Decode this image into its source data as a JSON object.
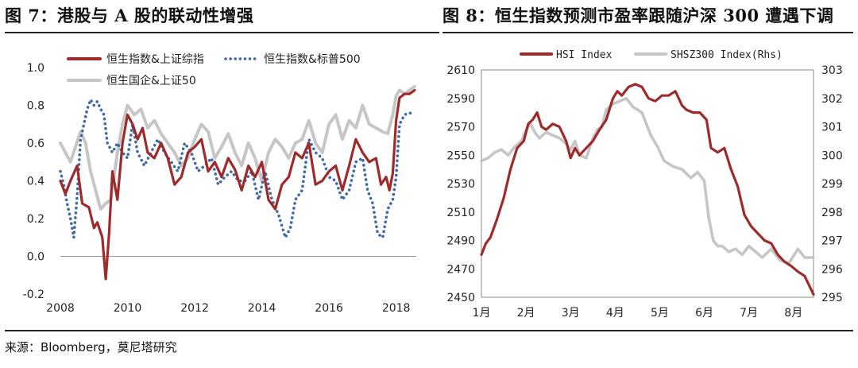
{
  "figures": {
    "left_title": "图 7：港股与 A 股的联动性增强",
    "right_title": "图 8：恒生指数预测市盈率跟随沪深 300 遭遇下调"
  },
  "source": "来源：Bloomberg，莫尼塔研究",
  "colors": {
    "red": "#9e2a2b",
    "blue": "#3e6aa8",
    "gray": "#c6c6c6"
  },
  "chart_data": [
    {
      "type": "line",
      "ylim": [
        -0.2,
        1.0
      ],
      "yticks": [
        "1.0",
        "0.8",
        "0.6",
        "0.4",
        "0.2",
        "0.0",
        "-0.2"
      ],
      "xlim": [
        2008,
        2018.6
      ],
      "xticks": [
        "2008",
        "2010",
        "2012",
        "2014",
        "2016",
        "2018"
      ],
      "legend": "top-left",
      "series": [
        {
          "name": "恒生指数&上证综指",
          "style": "solid",
          "color": "#9e2a2b",
          "x": [
            2008.0,
            2008.15,
            2008.3,
            2008.5,
            2008.65,
            2008.85,
            2009.0,
            2009.1,
            2009.25,
            2009.35,
            2009.45,
            2009.55,
            2009.7,
            2009.85,
            2010.0,
            2010.15,
            2010.3,
            2010.45,
            2010.6,
            2010.8,
            2011.0,
            2011.2,
            2011.4,
            2011.6,
            2011.8,
            2012.0,
            2012.2,
            2012.4,
            2012.6,
            2012.8,
            2013.0,
            2013.2,
            2013.4,
            2013.6,
            2013.8,
            2014.0,
            2014.2,
            2014.4,
            2014.6,
            2014.8,
            2015.0,
            2015.2,
            2015.4,
            2015.6,
            2015.8,
            2016.0,
            2016.2,
            2016.4,
            2016.6,
            2016.8,
            2017.0,
            2017.2,
            2017.4,
            2017.55,
            2017.7,
            2017.8,
            2017.9,
            2018.0,
            2018.1,
            2018.25,
            2018.4,
            2018.55
          ],
          "y": [
            0.4,
            0.33,
            0.4,
            0.48,
            0.28,
            0.26,
            0.15,
            0.18,
            0.1,
            -0.12,
            0.12,
            0.45,
            0.3,
            0.6,
            0.75,
            0.7,
            0.62,
            0.68,
            0.55,
            0.52,
            0.6,
            0.52,
            0.38,
            0.42,
            0.55,
            0.58,
            0.62,
            0.45,
            0.5,
            0.42,
            0.52,
            0.46,
            0.35,
            0.48,
            0.42,
            0.5,
            0.3,
            0.25,
            0.38,
            0.42,
            0.55,
            0.52,
            0.6,
            0.38,
            0.4,
            0.45,
            0.48,
            0.35,
            0.48,
            0.62,
            0.55,
            0.5,
            0.52,
            0.38,
            0.42,
            0.35,
            0.44,
            0.72,
            0.84,
            0.86,
            0.86,
            0.88
          ]
        },
        {
          "name": "恒生指数&标普500",
          "style": "dotted",
          "color": "#3e6aa8",
          "x": [
            2008.0,
            2008.1,
            2008.2,
            2008.3,
            2008.4,
            2008.5,
            2008.6,
            2008.7,
            2008.8,
            2008.9,
            2009.0,
            2009.1,
            2009.2,
            2009.3,
            2009.4,
            2009.55,
            2009.7,
            2009.85,
            2010.0,
            2010.15,
            2010.3,
            2010.5,
            2010.7,
            2010.9,
            2011.1,
            2011.3,
            2011.5,
            2011.7,
            2011.9,
            2012.1,
            2012.3,
            2012.5,
            2012.7,
            2012.9,
            2013.1,
            2013.3,
            2013.5,
            2013.7,
            2013.9,
            2014.1,
            2014.3,
            2014.5,
            2014.7,
            2014.85,
            2015.0,
            2015.2,
            2015.4,
            2015.6,
            2015.8,
            2016.0,
            2016.2,
            2016.4,
            2016.6,
            2016.8,
            2017.0,
            2017.15,
            2017.3,
            2017.45,
            2017.6,
            2017.75,
            2017.9,
            2018.0,
            2018.1,
            2018.25,
            2018.4,
            2018.55
          ],
          "y": [
            0.45,
            0.38,
            0.28,
            0.2,
            0.1,
            0.32,
            0.62,
            0.7,
            0.78,
            0.83,
            0.8,
            0.82,
            0.78,
            0.75,
            0.6,
            0.55,
            0.6,
            0.55,
            0.52,
            0.7,
            0.55,
            0.48,
            0.55,
            0.62,
            0.55,
            0.5,
            0.45,
            0.6,
            0.55,
            0.45,
            0.48,
            0.52,
            0.38,
            0.42,
            0.45,
            0.4,
            0.4,
            0.45,
            0.3,
            0.45,
            0.3,
            0.22,
            0.1,
            0.15,
            0.3,
            0.35,
            0.62,
            0.55,
            0.52,
            0.42,
            0.4,
            0.3,
            0.35,
            0.5,
            0.52,
            0.35,
            0.28,
            0.12,
            0.1,
            0.25,
            0.3,
            0.42,
            0.7,
            0.75,
            0.76,
            0.75
          ]
        },
        {
          "name": "恒生国企&上证50",
          "style": "solid",
          "color": "#c6c6c6",
          "x": [
            2008.0,
            2008.15,
            2008.3,
            2008.45,
            2008.6,
            2008.75,
            2008.9,
            2009.05,
            2009.2,
            2009.35,
            2009.5,
            2009.7,
            2009.85,
            2010.0,
            2010.2,
            2010.4,
            2010.6,
            2010.8,
            2011.0,
            2011.2,
            2011.4,
            2011.6,
            2011.8,
            2012.0,
            2012.2,
            2012.4,
            2012.6,
            2012.8,
            2013.0,
            2013.2,
            2013.4,
            2013.6,
            2013.8,
            2014.0,
            2014.2,
            2014.4,
            2014.6,
            2014.8,
            2015.0,
            2015.2,
            2015.4,
            2015.6,
            2015.8,
            2016.0,
            2016.2,
            2016.4,
            2016.6,
            2016.8,
            2017.0,
            2017.2,
            2017.4,
            2017.6,
            2017.75,
            2017.9,
            2018.0,
            2018.1,
            2018.25,
            2018.4,
            2018.55
          ],
          "y": [
            0.6,
            0.55,
            0.5,
            0.58,
            0.66,
            0.6,
            0.45,
            0.35,
            0.25,
            0.28,
            0.3,
            0.55,
            0.7,
            0.8,
            0.75,
            0.78,
            0.68,
            0.72,
            0.65,
            0.6,
            0.55,
            0.48,
            0.52,
            0.62,
            0.7,
            0.66,
            0.52,
            0.58,
            0.65,
            0.55,
            0.48,
            0.6,
            0.52,
            0.4,
            0.55,
            0.62,
            0.58,
            0.52,
            0.6,
            0.62,
            0.72,
            0.6,
            0.55,
            0.7,
            0.75,
            0.62,
            0.72,
            0.68,
            0.8,
            0.7,
            0.68,
            0.66,
            0.65,
            0.75,
            0.85,
            0.88,
            0.86,
            0.88,
            0.9
          ]
        }
      ]
    },
    {
      "type": "line",
      "ylim": [
        2450,
        2610
      ],
      "yticks": [
        "2610",
        "2590",
        "2570",
        "2550",
        "2530",
        "2510",
        "2490",
        "2470",
        "2450"
      ],
      "y2lim": [
        295,
        303
      ],
      "y2ticks": [
        "303",
        "302",
        "301",
        "300",
        "299",
        "298",
        "297",
        "296",
        "295"
      ],
      "xticks": [
        "1月",
        "2月",
        "3月",
        "4月",
        "5月",
        "6月",
        "7月",
        "8月"
      ],
      "xlim": [
        1,
        8.45
      ],
      "legend": "top-center",
      "series": [
        {
          "name": "HSI Index",
          "axis": "left",
          "color": "#9e2a2b",
          "x": [
            1.0,
            1.1,
            1.2,
            1.35,
            1.5,
            1.65,
            1.8,
            1.95,
            2.05,
            2.15,
            2.25,
            2.35,
            2.45,
            2.6,
            2.75,
            2.9,
            3.0,
            3.1,
            3.2,
            3.35,
            3.5,
            3.65,
            3.8,
            3.95,
            4.05,
            4.15,
            4.3,
            4.45,
            4.6,
            4.75,
            4.9,
            5.05,
            5.2,
            5.35,
            5.5,
            5.6,
            5.75,
            5.9,
            6.05,
            6.15,
            6.3,
            6.45,
            6.6,
            6.75,
            6.9,
            7.05,
            7.2,
            7.35,
            7.5,
            7.65,
            7.8,
            7.95,
            8.1,
            8.25,
            8.45
          ],
          "y": [
            2480,
            2488,
            2492,
            2505,
            2520,
            2540,
            2555,
            2560,
            2572,
            2575,
            2580,
            2570,
            2568,
            2572,
            2570,
            2560,
            2548,
            2555,
            2550,
            2555,
            2560,
            2568,
            2575,
            2590,
            2595,
            2592,
            2598,
            2600,
            2598,
            2590,
            2588,
            2592,
            2592,
            2595,
            2585,
            2582,
            2580,
            2580,
            2575,
            2555,
            2552,
            2555,
            2540,
            2528,
            2508,
            2500,
            2495,
            2490,
            2488,
            2480,
            2475,
            2472,
            2468,
            2465,
            2452
          ]
        },
        {
          "name": "SHSZ300 Index(Rhs)",
          "axis": "right",
          "color": "#c6c6c6",
          "x": [
            1.0,
            1.15,
            1.3,
            1.45,
            1.6,
            1.75,
            1.9,
            2.0,
            2.1,
            2.2,
            2.3,
            2.45,
            2.6,
            2.75,
            2.9,
            3.0,
            3.1,
            3.2,
            3.35,
            3.5,
            3.6,
            3.7,
            3.8,
            3.95,
            4.1,
            4.25,
            4.4,
            4.6,
            4.8,
            4.95,
            5.1,
            5.3,
            5.5,
            5.7,
            5.85,
            6.0,
            6.1,
            6.2,
            6.3,
            6.4,
            6.55,
            6.7,
            6.85,
            7.0,
            7.15,
            7.3,
            7.5,
            7.7,
            7.9,
            8.1,
            8.25,
            8.45
          ],
          "y": [
            299.8,
            299.9,
            300.1,
            300.2,
            300.0,
            300.3,
            300.5,
            300.9,
            301.1,
            300.8,
            300.6,
            300.8,
            300.7,
            300.6,
            300.4,
            300.2,
            300.5,
            300.0,
            299.9,
            300.6,
            300.9,
            301.0,
            301.6,
            301.8,
            301.9,
            302.0,
            301.7,
            301.5,
            300.7,
            300.3,
            299.8,
            299.6,
            299.5,
            299.2,
            299.4,
            299.1,
            297.8,
            297.0,
            296.8,
            296.8,
            296.6,
            296.7,
            296.5,
            296.8,
            296.6,
            296.4,
            296.7,
            296.3,
            296.2,
            296.7,
            296.4,
            296.4
          ]
        }
      ]
    }
  ]
}
